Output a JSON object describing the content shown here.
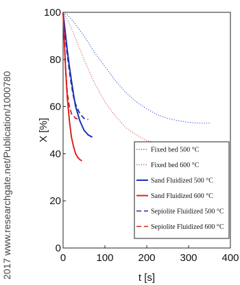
{
  "watermark": "2017 www.researchgate.net/Publication/1000780",
  "chart_data": {
    "type": "line",
    "xlabel": "t [s]",
    "ylabel": "X [%]",
    "xlim": [
      0,
      400
    ],
    "ylim": [
      0,
      100
    ],
    "xticks": [
      "0",
      "100",
      "200",
      "300",
      "400"
    ],
    "yticks": [
      "0",
      "20",
      "40",
      "60",
      "80",
      "100"
    ],
    "grid": false,
    "legend_position": "bottom-right",
    "series": [
      {
        "name": "Fixed bed 500 °C",
        "color": "#3b5bcc",
        "style": "dotted",
        "x": [
          0,
          10,
          25,
          50,
          75,
          100,
          125,
          150,
          175,
          200,
          225,
          250,
          275,
          300,
          325,
          350
        ],
        "y": [
          100,
          99,
          96,
          90,
          83,
          77,
          71,
          66,
          62,
          59,
          56.5,
          55,
          54,
          53.3,
          53,
          53
        ]
      },
      {
        "name": "Fixed bed 600 °C",
        "color": "#d06060",
        "style": "dotted",
        "x": [
          0,
          10,
          25,
          50,
          75,
          100,
          125,
          150,
          175,
          200,
          215
        ],
        "y": [
          100,
          97,
          91,
          80,
          70,
          62,
          56,
          51,
          48,
          45.5,
          45
        ]
      },
      {
        "name": "Sand Fluidized 500 °C",
        "color": "#1a2fb5",
        "style": "solid",
        "x": [
          0,
          5,
          10,
          15,
          20,
          25,
          30,
          40,
          50,
          60,
          70
        ],
        "y": [
          100,
          92,
          84,
          77,
          71,
          65,
          60,
          54,
          50,
          48,
          47
        ]
      },
      {
        "name": "Sand Fluidized 600 °C",
        "color": "#e02020",
        "style": "solid",
        "x": [
          0,
          3,
          6,
          10,
          15,
          20,
          25,
          30,
          35,
          40,
          45
        ],
        "y": [
          100,
          88,
          76,
          64,
          54,
          47,
          43,
          40,
          38.5,
          37.5,
          37
        ]
      },
      {
        "name": "Sepiolite Fluidized 500 °C",
        "color": "#1a2fb5",
        "style": "dashed",
        "x": [
          0,
          5,
          10,
          15,
          20,
          25,
          30,
          40,
          50,
          60
        ],
        "y": [
          100,
          90,
          82,
          75,
          69,
          64,
          61,
          57,
          55,
          54.5
        ]
      },
      {
        "name": "Sepiolite Fluidized 600 °C",
        "color": "#d02020",
        "style": "dashed",
        "x": [
          0,
          3,
          6,
          10,
          15,
          20,
          30,
          40
        ],
        "y": [
          100,
          88,
          76,
          66,
          60,
          57,
          55,
          54.5
        ]
      }
    ]
  }
}
